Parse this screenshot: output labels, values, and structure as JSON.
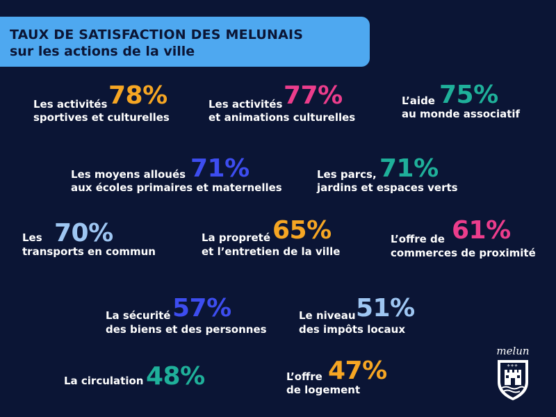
{
  "header": {
    "line1": "TAUX DE SATISFACTION DES MELUNAIS",
    "line2": "sur les actions de la ville"
  },
  "stats": [
    {
      "label1": "Les activités",
      "label2": "sportives et culturelles",
      "percent": "78%",
      "color": "#f6a623"
    },
    {
      "label1": "Les activités",
      "label2": "et animations culturelles",
      "percent": "77%",
      "color": "#ec3d8c"
    },
    {
      "label1": "L’aide",
      "label2": "au monde associatif",
      "percent": "75%",
      "color": "#1fb09a"
    },
    {
      "label1": "Les moyens alloués",
      "label2": "aux écoles primaires et maternelles",
      "percent": "71%",
      "color": "#3d4df0"
    },
    {
      "label1": "Les parcs,",
      "label2": "jardins et espaces verts",
      "percent": "71%",
      "color": "#1fb09a"
    },
    {
      "label1": "Les",
      "label2": "transports en commun",
      "percent": "70%",
      "color": "#9ec6f2"
    },
    {
      "label1": "La propreté",
      "label2": "et l’entretien de la ville",
      "percent": "65%",
      "color": "#f6a623"
    },
    {
      "label1": "L’offre de",
      "label2": "commerces de proximité",
      "percent": "61%",
      "color": "#ec3d8c"
    },
    {
      "label1": "La sécurité",
      "label2": "des biens et des personnes",
      "percent": "57%",
      "color": "#3d4df0"
    },
    {
      "label1": "Le niveau",
      "label2": "des impôts locaux",
      "percent": "51%",
      "color": "#9ec6f2"
    },
    {
      "label1": "La circulation",
      "label2": "",
      "percent": "48%",
      "color": "#1fb09a"
    },
    {
      "label1": "L’offre",
      "label2": "de logement",
      "percent": "47%",
      "color": "#f6a623"
    }
  ],
  "logo": {
    "wordmark": "melun"
  }
}
